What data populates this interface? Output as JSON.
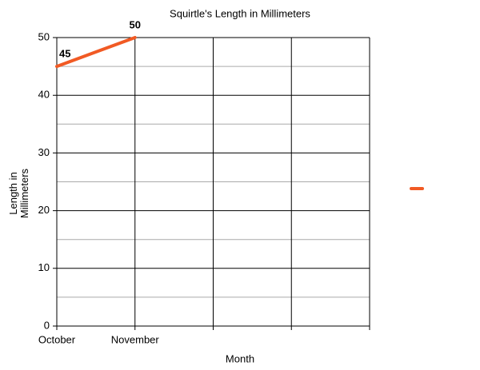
{
  "chart_data": {
    "type": "line",
    "title": "Squirtle's Length in Millimeters",
    "x_label": "Month",
    "y_label": "Length in Millimeters",
    "categories": [
      "October",
      "November",
      null,
      null,
      null
    ],
    "series": [
      {
        "color": "#f15a24",
        "values": [
          45,
          50,
          null,
          null,
          null
        ]
      }
    ],
    "ylim": [
      0,
      50
    ],
    "yticks": [
      0,
      10,
      20,
      30,
      40,
      50
    ],
    "grid": true,
    "legend": "right"
  }
}
